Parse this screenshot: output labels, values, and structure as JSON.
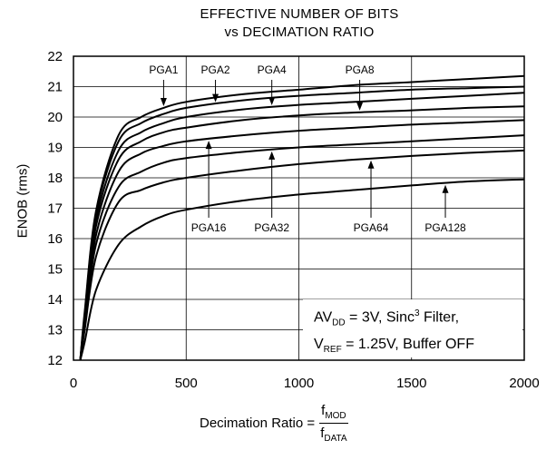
{
  "chart_data": {
    "type": "line",
    "title_line1": "EFFECTIVE NUMBER OF BITS",
    "title_line2": "vs DECIMATION RATIO",
    "ylabel": "ENOB (rms)",
    "xlabel_prefix": "Decimation Ratio = ",
    "xlabel_num": "f",
    "xlabel_num_sub": "MOD",
    "xlabel_den": "f",
    "xlabel_den_sub": "DATA",
    "xlim": [
      0,
      2000
    ],
    "ylim": [
      12,
      22
    ],
    "xticks": [
      "0",
      "500",
      "1000",
      "1500",
      "2000"
    ],
    "yticks": [
      "12",
      "13",
      "14",
      "15",
      "16",
      "17",
      "18",
      "19",
      "20",
      "21",
      "22"
    ],
    "grid": true,
    "x": [
      30,
      50,
      100,
      200,
      300,
      400,
      500,
      750,
      1000,
      1250,
      1500,
      1750,
      2000
    ],
    "series": [
      {
        "name": "PGA1",
        "values": [
          12.0,
          13.6,
          16.9,
          19.4,
          20.0,
          20.3,
          20.5,
          20.75,
          20.9,
          21.05,
          21.15,
          21.25,
          21.35
        ]
      },
      {
        "name": "PGA2",
        "values": [
          12.0,
          13.5,
          16.8,
          19.2,
          19.8,
          20.1,
          20.3,
          20.55,
          20.7,
          20.8,
          20.9,
          20.95,
          21.0
        ]
      },
      {
        "name": "PGA4",
        "values": [
          12.0,
          13.4,
          16.6,
          18.9,
          19.5,
          19.8,
          20.0,
          20.25,
          20.4,
          20.5,
          20.6,
          20.7,
          20.8
        ]
      },
      {
        "name": "PGA8",
        "values": [
          12.0,
          13.3,
          16.4,
          18.6,
          19.2,
          19.5,
          19.65,
          19.9,
          20.05,
          20.15,
          20.22,
          20.3,
          20.35
        ]
      },
      {
        "name": "PGA16",
        "values": [
          12.0,
          13.2,
          16.1,
          18.2,
          18.8,
          19.05,
          19.2,
          19.4,
          19.55,
          19.65,
          19.75,
          19.82,
          19.9
        ]
      },
      {
        "name": "PGA32",
        "values": [
          12.0,
          13.1,
          15.8,
          17.7,
          18.2,
          18.5,
          18.65,
          18.85,
          19.0,
          19.1,
          19.2,
          19.3,
          19.4
        ]
      },
      {
        "name": "PGA64",
        "values": [
          12.0,
          13.0,
          15.4,
          17.2,
          17.6,
          17.85,
          18.0,
          18.25,
          18.45,
          18.6,
          18.72,
          18.82,
          18.9
        ]
      },
      {
        "name": "PGA128",
        "values": [
          12.0,
          12.6,
          14.3,
          15.8,
          16.4,
          16.75,
          16.95,
          17.25,
          17.45,
          17.6,
          17.75,
          17.88,
          17.95
        ]
      }
    ],
    "annotation": {
      "line1_pre": "AV",
      "line1_sub": "DD",
      "line1_mid": " = 3V, Sinc",
      "line1_sup": "3",
      "line1_post": " Filter,",
      "line2_pre": "V",
      "line2_sub": "REF",
      "line2_post": " = 1.25V, Buffer OFF"
    },
    "labels": [
      {
        "series": "PGA1",
        "text": "PGA1",
        "at_x": 400,
        "label_side": "above"
      },
      {
        "series": "PGA2",
        "text": "PGA2",
        "at_x": 630,
        "label_side": "above"
      },
      {
        "series": "PGA4",
        "text": "PGA4",
        "at_x": 880,
        "label_side": "above"
      },
      {
        "series": "PGA8",
        "text": "PGA8",
        "at_x": 1270,
        "label_side": "above"
      },
      {
        "series": "PGA16",
        "text": "PGA16",
        "at_x": 600,
        "label_side": "below"
      },
      {
        "series": "PGA32",
        "text": "PGA32",
        "at_x": 880,
        "label_side": "below"
      },
      {
        "series": "PGA64",
        "text": "PGA64",
        "at_x": 1320,
        "label_side": "below"
      },
      {
        "series": "PGA128",
        "text": "PGA128",
        "at_x": 1650,
        "label_side": "below"
      }
    ]
  }
}
